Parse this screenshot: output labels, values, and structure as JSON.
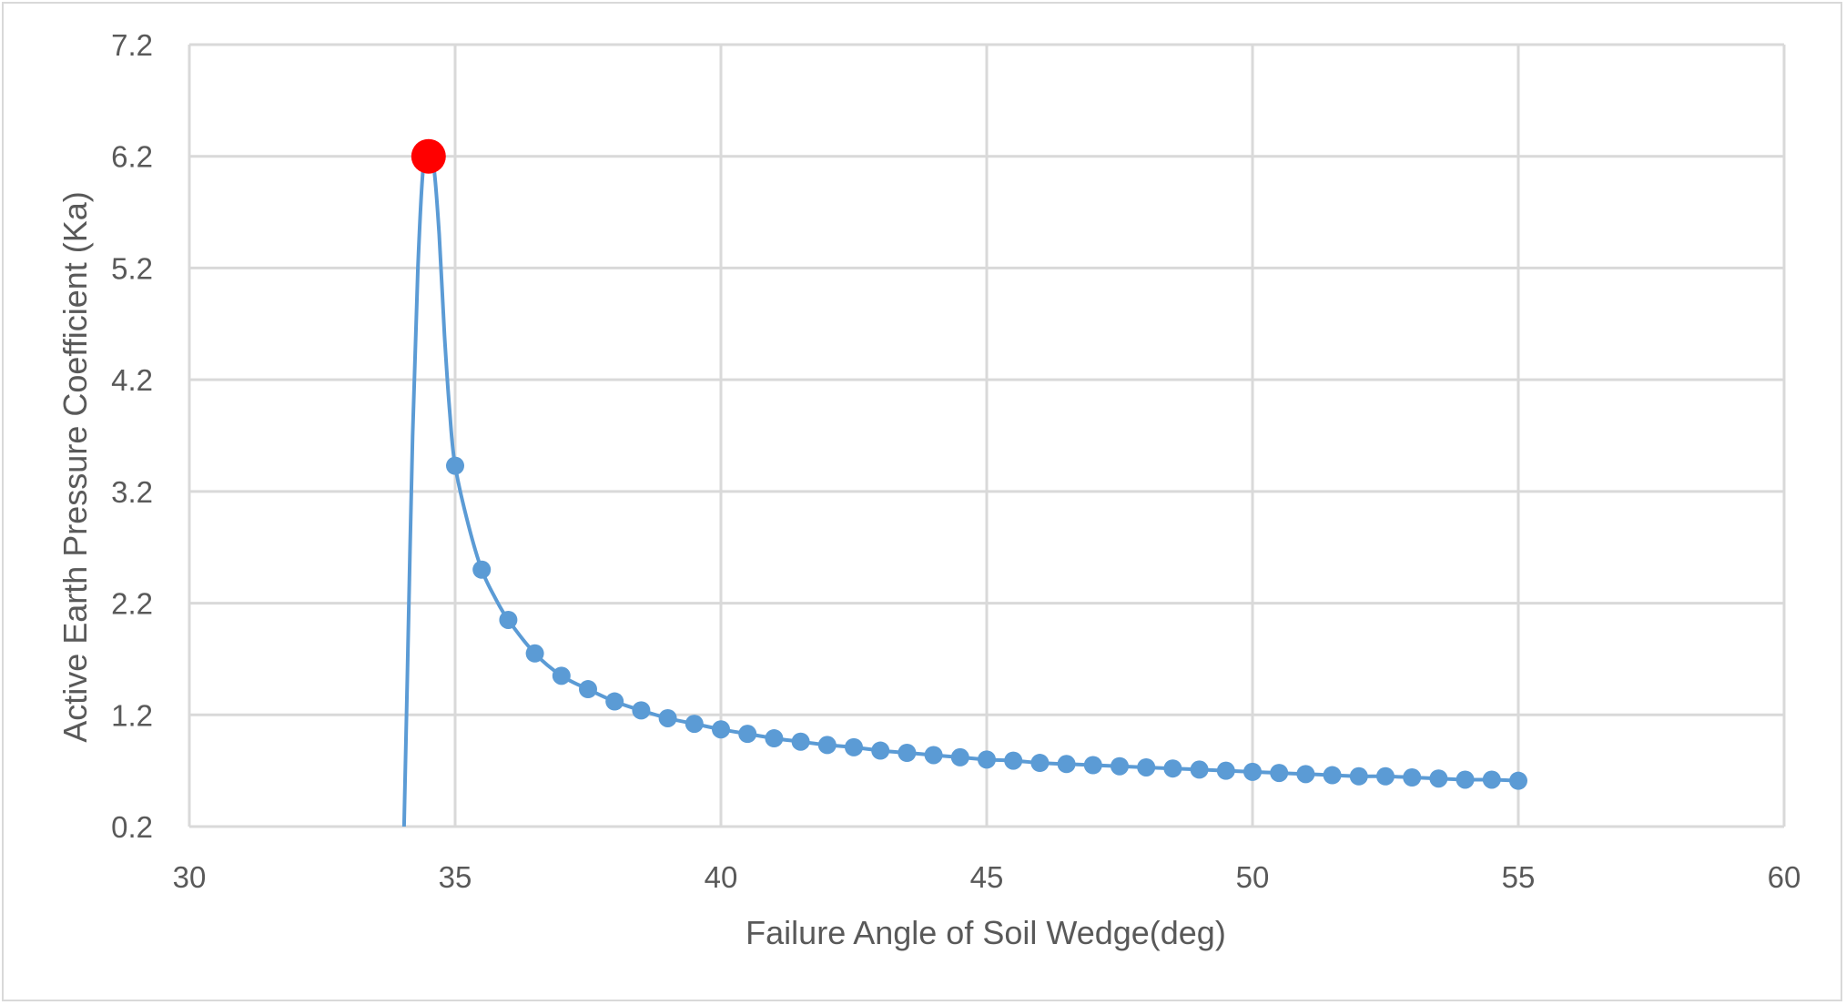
{
  "chart_data": {
    "type": "line",
    "title": "",
    "xlabel": "Failure Angle of Soil Wedge(deg)",
    "ylabel": "Active  Earth Pressure Coefficient  (Ka)",
    "xlim": [
      30,
      60
    ],
    "ylim": [
      0.2,
      7.2
    ],
    "x_ticks": [
      "30",
      "35",
      "40",
      "45",
      "50",
      "55",
      "60"
    ],
    "y_ticks": [
      "0.2",
      "1.2",
      "2.2",
      "3.2",
      "4.2",
      "5.2",
      "6.2",
      "7.2"
    ],
    "grid": true,
    "legend": "none",
    "series": [
      {
        "color": "#5b9bd5",
        "smooth": true,
        "curve_x": [
          34.04,
          34.1,
          34.2,
          34.3,
          34.4,
          34.5,
          34.6,
          34.7,
          34.8,
          34.9,
          35.0,
          35.25,
          35.5,
          35.75,
          36.0,
          36.5,
          37.0,
          37.5,
          38.0,
          38.5,
          39.0,
          39.5,
          40.0,
          40.5,
          41.0,
          41.5,
          42.0,
          42.5,
          43.0,
          43.5,
          44.0,
          44.5,
          45.0,
          45.5,
          46.0,
          46.5,
          47.0,
          47.5,
          48.0,
          48.5,
          49.0,
          49.5,
          50.0,
          50.5,
          51.0,
          51.5,
          52.0,
          52.5,
          53.0,
          53.5,
          54.0,
          54.5,
          55.0
        ],
        "curve_y": [
          0.2,
          1.5,
          3.7,
          5.2,
          6.1,
          6.2,
          6.1,
          5.5,
          4.6,
          3.9,
          3.43,
          2.9,
          2.5,
          2.25,
          2.05,
          1.75,
          1.55,
          1.43,
          1.32,
          1.24,
          1.17,
          1.12,
          1.07,
          1.03,
          0.99,
          0.96,
          0.93,
          0.91,
          0.88,
          0.86,
          0.84,
          0.82,
          0.8,
          0.79,
          0.77,
          0.76,
          0.75,
          0.74,
          0.73,
          0.72,
          0.71,
          0.7,
          0.69,
          0.68,
          0.67,
          0.66,
          0.65,
          0.65,
          0.64,
          0.63,
          0.62,
          0.62,
          0.61
        ],
        "marker_x": [
          35.0,
          35.5,
          36.0,
          36.5,
          37.0,
          37.5,
          38.0,
          38.5,
          39.0,
          39.5,
          40.0,
          40.5,
          41.0,
          41.5,
          42.0,
          42.5,
          43.0,
          43.5,
          44.0,
          44.5,
          45.0,
          45.5,
          46.0,
          46.5,
          47.0,
          47.5,
          48.0,
          48.5,
          49.0,
          49.5,
          50.0,
          50.5,
          51.0,
          51.5,
          52.0,
          52.5,
          53.0,
          53.5,
          54.0,
          54.5,
          55.0
        ],
        "marker_y": [
          3.43,
          2.5,
          2.05,
          1.75,
          1.55,
          1.43,
          1.32,
          1.24,
          1.17,
          1.12,
          1.07,
          1.03,
          0.99,
          0.96,
          0.93,
          0.91,
          0.88,
          0.86,
          0.84,
          0.82,
          0.8,
          0.79,
          0.77,
          0.76,
          0.75,
          0.74,
          0.73,
          0.72,
          0.71,
          0.7,
          0.69,
          0.68,
          0.67,
          0.66,
          0.65,
          0.65,
          0.64,
          0.63,
          0.62,
          0.62,
          0.61
        ]
      }
    ],
    "highlight_point": {
      "x": 34.5,
      "y": 6.2,
      "color": "#ff0000"
    },
    "grid_color": "#d9d9d9"
  }
}
